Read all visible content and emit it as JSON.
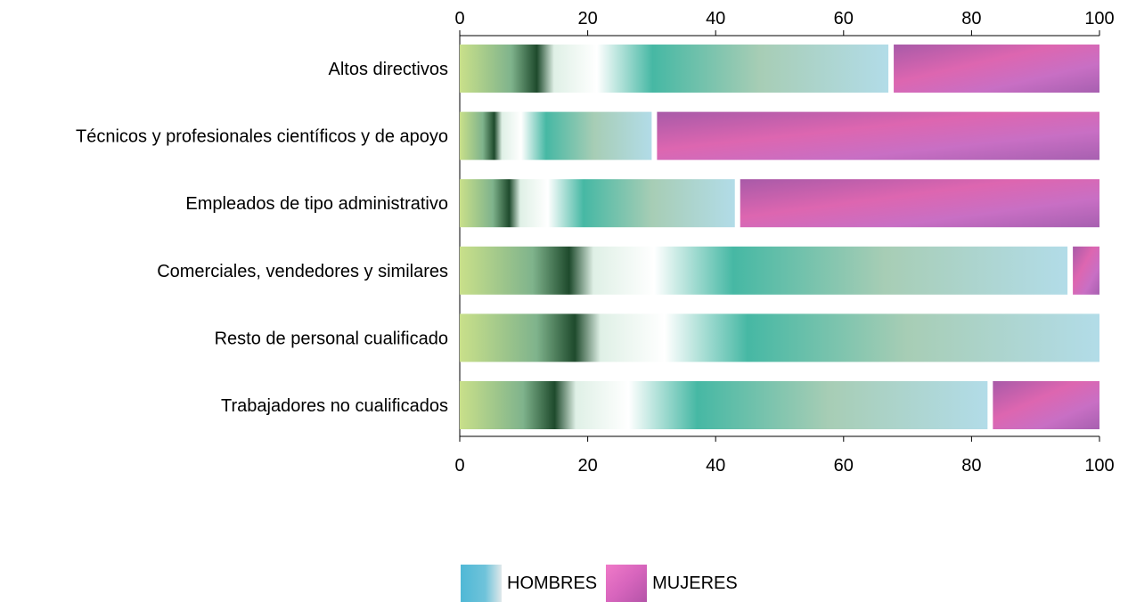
{
  "chart_data": {
    "type": "bar",
    "orientation": "horizontal",
    "stacked": true,
    "categories": [
      "Altos directivos",
      "Técnicos y profesionales científicos y de apoyo",
      "Empleados de tipo administrativo",
      "Comerciales, vendedores y similares",
      "Resto de personal cualificado",
      "Trabajadores no cualificados"
    ],
    "series": [
      {
        "name": "HOMBRES",
        "values": [
          67,
          30,
          43,
          95,
          100,
          82.5
        ],
        "color": "#5bbfd6"
      },
      {
        "name": "MUJERES",
        "values": [
          33,
          70,
          57,
          5,
          0,
          17.5
        ],
        "color": "#d46bbd"
      }
    ],
    "xlim": [
      0,
      100
    ],
    "xticks": [
      "0",
      "20",
      "40",
      "60",
      "80",
      "100"
    ],
    "legend_position": "bottom"
  },
  "legend": {
    "hombres_label": "HOMBRES",
    "mujeres_label": "MUJERES"
  }
}
